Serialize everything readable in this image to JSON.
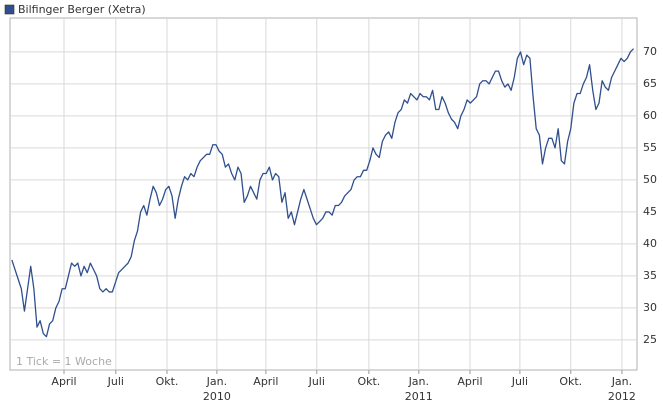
{
  "chart_data": {
    "type": "line",
    "title": "Bilfinger Berger (Xetra)",
    "annotation": "1 Tick = 1 Woche",
    "series": [
      {
        "name": "Bilfinger Berger (Xetra)",
        "color": "#2f4f8f",
        "values": [
          37.5,
          36,
          34.5,
          33,
          29.5,
          33,
          36.5,
          33,
          27,
          28,
          26,
          25.5,
          27.5,
          28,
          30,
          31,
          33,
          33,
          35,
          37,
          36.5,
          37,
          35,
          36.5,
          35.5,
          37,
          36,
          35,
          33,
          32.5,
          33,
          32.5,
          32.5,
          34,
          35.5,
          36,
          36.5,
          37,
          38,
          40.5,
          42,
          45,
          46,
          44.5,
          47,
          49,
          48,
          46,
          47,
          48.5,
          49,
          47.5,
          44,
          47,
          49,
          50.5,
          50,
          51,
          50.5,
          52,
          53,
          53.5,
          54,
          54,
          55.5,
          55.5,
          54.5,
          54,
          52,
          52.5,
          51,
          50,
          52,
          51,
          46.5,
          47.5,
          49,
          48,
          47,
          50,
          51,
          51,
          52,
          50,
          51,
          50.5,
          46.5,
          48,
          44,
          45,
          43,
          45,
          47,
          48.5,
          47,
          45.5,
          44,
          43,
          43.5,
          44,
          45,
          45,
          44.5,
          46,
          46,
          46.5,
          47.5,
          48,
          48.5,
          50,
          50.5,
          50.5,
          51.5,
          51.5,
          53,
          55,
          54,
          53.5,
          56,
          57,
          57.5,
          56.5,
          59,
          60.5,
          61,
          62.5,
          62,
          63.5,
          63,
          62.5,
          63.5,
          63,
          63,
          62.5,
          64,
          61,
          61,
          63,
          62,
          60.5,
          59.5,
          59,
          58,
          60,
          61,
          62.5,
          62,
          62.5,
          63,
          65,
          65.5,
          65.5,
          65,
          66,
          67,
          67,
          65.5,
          64.5,
          65,
          64,
          66,
          69,
          70,
          68,
          69.5,
          69,
          63,
          58,
          57,
          52.5,
          55,
          56.5,
          56.5,
          55,
          58,
          53,
          52.5,
          56,
          58,
          62,
          63.5,
          63.5,
          65,
          66,
          68,
          64,
          61,
          62,
          65.5,
          64.5,
          64,
          66,
          67,
          68,
          69,
          68.5,
          69,
          70,
          70.5
        ]
      }
    ],
    "xlim": [
      -0.6,
      199.1
    ],
    "xticks": [
      {
        "value": 16.6,
        "label": "April"
      },
      {
        "value": 33.1,
        "label": "Juli"
      },
      {
        "value": 49.4,
        "label": "Okt."
      },
      {
        "value": 65.3,
        "label": "Jan."
      },
      {
        "value": 80.9,
        "label": "April"
      },
      {
        "value": 97.1,
        "label": "Juli"
      },
      {
        "value": 113.7,
        "label": "Okt."
      },
      {
        "value": 129.6,
        "label": "Jan."
      },
      {
        "value": 145.9,
        "label": "April"
      },
      {
        "value": 161.8,
        "label": "Juli"
      },
      {
        "value": 178,
        "label": "Okt."
      },
      {
        "value": 194.3,
        "label": "Jan."
      }
    ],
    "year_labels": [
      {
        "value": 65.3,
        "label": "2010"
      },
      {
        "value": 129.6,
        "label": "2011"
      },
      {
        "value": 194.3,
        "label": "2012"
      }
    ],
    "ylim": [
      20.3,
      75.3
    ],
    "yticks": [
      25,
      30,
      35,
      40,
      45,
      50,
      55,
      60,
      65,
      70
    ],
    "grid": true,
    "legend": "top-left"
  }
}
